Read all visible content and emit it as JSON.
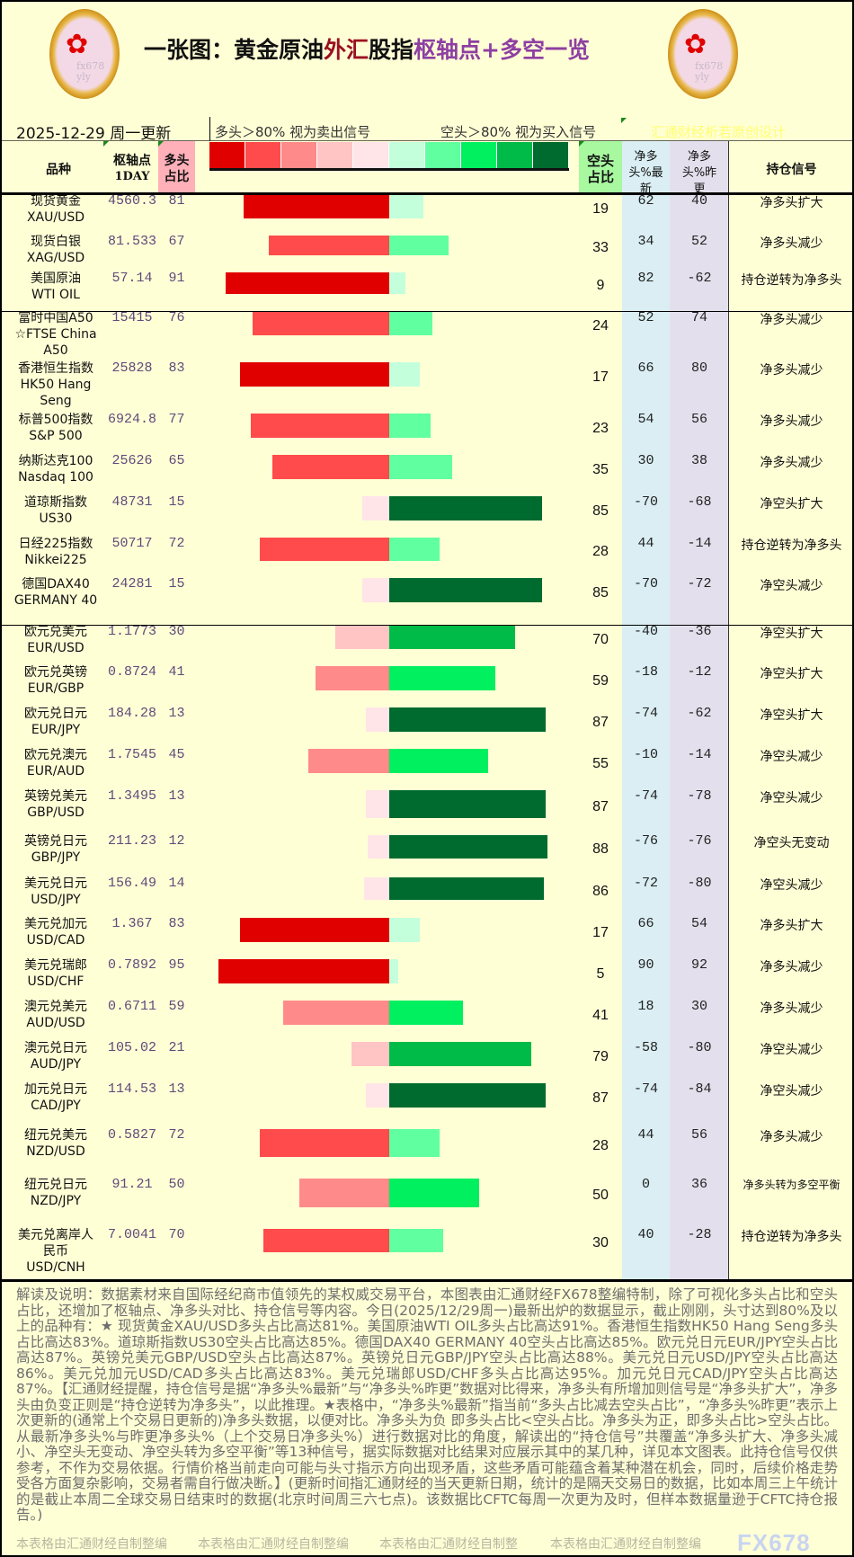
{
  "header": {
    "title_part1": "一张图：黄金原油",
    "title_part2": "外汇",
    "title_part3": "股指",
    "title_part4": "枢轴点+多空一览",
    "logo_text": "fx678 yly",
    "date": "2025-12-29  周一更新",
    "long_rule": "多头＞80%  视为卖出信号",
    "short_rule": "空头＞80%  视为买入信号",
    "credit": "汇通财经析若原创设计"
  },
  "columns": {
    "name": "品种",
    "pivot": "枢轴点",
    "pivot_sub": "1DAY",
    "long": "多头占比",
    "short": "空头占比",
    "net_latest": "净多头%最新",
    "net_prev": "净多头%昨更",
    "signal": "持仓信号"
  },
  "colors": {
    "long_scale": [
      "#e00000",
      "#ff4b4b",
      "#ff8a8a",
      "#ffc4c4",
      "#ffe4e8"
    ],
    "short_scale": [
      "#c4ffdc",
      "#60ffa0",
      "#00f060",
      "#00bb48",
      "#006b2e"
    ],
    "net_latest_bg": "#daeef3",
    "net_prev_bg": "#e4dfec",
    "long_header_bg": "#ffb0b8",
    "short_header_bg": "#a8f8a0"
  },
  "rows": [
    {
      "name": [
        "现货黄金",
        "XAU/USD"
      ],
      "pivot": "4560.3",
      "long": 81,
      "short": 19,
      "net_latest": "62",
      "net_prev": "40",
      "signal": "净多头扩大"
    },
    {
      "name": [
        "现货白银",
        "XAG/USD"
      ],
      "pivot": "81.533",
      "long": 67,
      "short": 33,
      "net_latest": "34",
      "net_prev": "52",
      "signal": "净多头减少"
    },
    {
      "name": [
        "美国原油",
        "WTI OIL"
      ],
      "pivot": "57.14",
      "long": 91,
      "short": 9,
      "net_latest": "82",
      "net_prev": "-62",
      "signal": "持仓逆转为净多头"
    },
    {
      "name": [
        "富时中国A50",
        "☆FTSE China",
        "A50"
      ],
      "pivot": "15415",
      "long": 76,
      "short": 24,
      "net_latest": "52",
      "net_prev": "74",
      "signal": "净多头减少"
    },
    {
      "name": [
        "香港恒生指数",
        "HK50 Hang",
        "Seng"
      ],
      "pivot": "25828",
      "long": 83,
      "short": 17,
      "net_latest": "66",
      "net_prev": "80",
      "signal": "净多头减少"
    },
    {
      "name": [
        "标普500指数",
        "S&P 500"
      ],
      "pivot": "6924.8",
      "long": 77,
      "short": 23,
      "net_latest": "54",
      "net_prev": "56",
      "signal": "净多头减少"
    },
    {
      "name": [
        "纳斯达克100",
        "Nasdaq 100"
      ],
      "pivot": "25626",
      "long": 65,
      "short": 35,
      "net_latest": "30",
      "net_prev": "38",
      "signal": "净多头减少"
    },
    {
      "name": [
        "道琼斯指数",
        "US30"
      ],
      "pivot": "48731",
      "long": 15,
      "short": 85,
      "net_latest": "-70",
      "net_prev": "-68",
      "signal": "净空头扩大"
    },
    {
      "name": [
        "日经225指数",
        "Nikkei225"
      ],
      "pivot": "50717",
      "long": 72,
      "short": 28,
      "net_latest": "44",
      "net_prev": "-14",
      "signal": "持仓逆转为净多头"
    },
    {
      "name": [
        "德国DAX40",
        "GERMANY 40"
      ],
      "pivot": "24281",
      "long": 15,
      "short": 85,
      "net_latest": "-70",
      "net_prev": "-72",
      "signal": "净空头减少"
    },
    {
      "name": [
        "欧元兑美元",
        "EUR/USD"
      ],
      "pivot": "1.1773",
      "long": 30,
      "short": 70,
      "net_latest": "-40",
      "net_prev": "-36",
      "signal": "净空头扩大"
    },
    {
      "name": [
        "欧元兑英镑",
        "EUR/GBP"
      ],
      "pivot": "0.8724",
      "long": 41,
      "short": 59,
      "net_latest": "-18",
      "net_prev": "-12",
      "signal": "净空头扩大"
    },
    {
      "name": [
        "欧元兑日元",
        "EUR/JPY"
      ],
      "pivot": "184.28",
      "long": 13,
      "short": 87,
      "net_latest": "-74",
      "net_prev": "-62",
      "signal": "净空头扩大"
    },
    {
      "name": [
        "欧元兑澳元",
        "EUR/AUD"
      ],
      "pivot": "1.7545",
      "long": 45,
      "short": 55,
      "net_latest": "-10",
      "net_prev": "-14",
      "signal": "净空头减少"
    },
    {
      "name": [
        "英镑兑美元",
        "GBP/USD"
      ],
      "pivot": "1.3495",
      "long": 13,
      "short": 87,
      "net_latest": "-74",
      "net_prev": "-78",
      "signal": "净空头减少"
    },
    {
      "name": [
        "英镑兑日元",
        "GBP/JPY"
      ],
      "pivot": "211.23",
      "long": 12,
      "short": 88,
      "net_latest": "-76",
      "net_prev": "-76",
      "signal": "净空头无变动"
    },
    {
      "name": [
        "美元兑日元",
        "USD/JPY"
      ],
      "pivot": "156.49",
      "long": 14,
      "short": 86,
      "net_latest": "-72",
      "net_prev": "-80",
      "signal": "净空头减少"
    },
    {
      "name": [
        "美元兑加元",
        "USD/CAD"
      ],
      "pivot": "1.367",
      "long": 83,
      "short": 17,
      "net_latest": "66",
      "net_prev": "54",
      "signal": "净多头扩大"
    },
    {
      "name": [
        "美元兑瑞郎",
        "USD/CHF"
      ],
      "pivot": "0.7892",
      "long": 95,
      "short": 5,
      "net_latest": "90",
      "net_prev": "92",
      "signal": "净多头减少"
    },
    {
      "name": [
        "澳元兑美元",
        "AUD/USD"
      ],
      "pivot": "0.6711",
      "long": 59,
      "short": 41,
      "net_latest": "18",
      "net_prev": "30",
      "signal": "净多头减少"
    },
    {
      "name": [
        "澳元兑日元",
        "AUD/JPY"
      ],
      "pivot": "105.02",
      "long": 21,
      "short": 79,
      "net_latest": "-58",
      "net_prev": "-80",
      "signal": "净空头减少"
    },
    {
      "name": [
        "加元兑日元",
        "CAD/JPY"
      ],
      "pivot": "114.53",
      "long": 13,
      "short": 87,
      "net_latest": "-74",
      "net_prev": "-84",
      "signal": "净空头减少"
    },
    {
      "name": [
        "纽元兑美元",
        "NZD/USD"
      ],
      "pivot": "0.5827",
      "long": 72,
      "short": 28,
      "net_latest": "44",
      "net_prev": "56",
      "signal": "净多头减少"
    },
    {
      "name": [
        "纽元兑日元",
        "NZD/JPY"
      ],
      "pivot": "91.21",
      "long": 50,
      "short": 50,
      "net_latest": "0",
      "net_prev": "36",
      "signal": "净多头转为多空平衡"
    },
    {
      "name": [
        "美元兑离岸人",
        "民币",
        "USD/CNH"
      ],
      "pivot": "7.0041",
      "long": 70,
      "short": 30,
      "net_latest": "40",
      "net_prev": "-28",
      "signal": "持仓逆转为净多头"
    }
  ],
  "footer": {
    "text": "解读及说明：数据素材来自国际经纪商市值领先的某权威交易平台，本图表由汇通财经FX678整编特制，除了可视化多头占比和空头占比，还增加了枢轴点、净多头对比、持仓信号等内容。今日(2025/12/29周一)最新出炉的数据显示，截止刚刚，头寸达到80%及以上的品种有：★ 现货黄金XAU/USD多头占比高达81%。美国原油WTI OIL多头占比高达91%。香港恒生指数HK50 Hang Seng多头占比高达83%。道琼斯指数US30空头占比高达85%。德国DAX40 GERMANY 40空头占比高达85%。欧元兑日元EUR/JPY空头占比高达87%。英镑兑美元GBP/USD空头占比高达87%。英镑兑日元GBP/JPY空头占比高达88%。美元兑日元USD/JPY空头占比高达86%。美元兑加元USD/CAD多头占比高达83%。美元兑瑞郎USD/CHF多头占比高达95%。加元兑日元CAD/JPY空头占比高达87%。【汇通财经提醒，持仓信号是据“净多头%最新”与“净多头%昨更”数据对比得来，净多头有所增加则信号是“净多头扩大”，净多头由负变正则是“持仓逆转为净多头”，以此推理。★表格中，“净多头%最新”指当前“多头占比减去空头占比”，“净多头%昨更”表示上次更新的(通常上个交易日更新的)净多头数据，以便对比。净多头为负 即多头占比<空头占比。净多头为正，即多头占比>空头占比。从最新净多头%与昨更净多头%（上个交易日净多头%）进行数据对比的角度，解读出的“持仓信号”共覆盖“净多头扩大、净多头减小、净空头无变动、净空头转为多空平衡”等13种信号，据实际数据对比结果对应展示其中的某几种，详见本文图表。此持仓信号仅供参考，不作为交易依据。行情价格当前走向可能与头寸指示方向出现矛盾，这些矛盾可能蕴含着某种潜在机会，同时，后续价格走势受各方面复杂影响，交易者需自行做决断。】(更新时间指汇通财经的当天更新日期，统计的是隔天交易日的数据，比如本周三上午统计的是截止本周二全球交易日结束时的数据(北京时间周三六七点)。该数据比CFTC每周一次更为及时，但样本数据量逊于CFTC持仓报告。)",
    "watermarks": [
      "本表格由汇通财经自制整编",
      "本表格由汇通财经自制整编",
      "本表格由汇通财经自制整",
      "本表格由汇通财经自制整编"
    ],
    "brand": "FX678"
  }
}
